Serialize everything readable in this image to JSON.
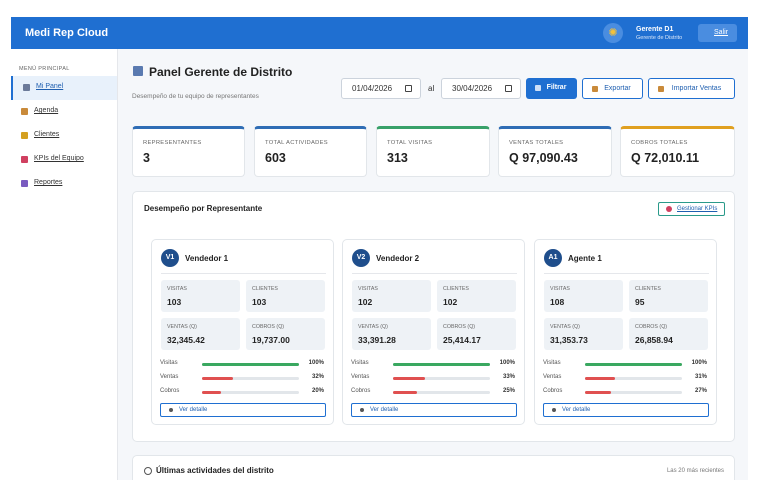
{
  "header": {
    "brand": "Medi Rep Cloud",
    "user_name": "Gerente D1",
    "user_role": "Gerente de Distrito",
    "logout": "Salir"
  },
  "sidebar": {
    "section_title": "MENÚ PRINCIPAL",
    "items": [
      "Mi Panel",
      "Agenda",
      "Clientes",
      "KPIs del Equipo",
      "Reportes"
    ]
  },
  "page": {
    "title": "Panel Gerente de Distrito",
    "subtitle": "Desempeño de tu equipo de representantes",
    "date_from": "01/04/2026",
    "date_sep": "al",
    "date_to": "30/04/2026",
    "buttons": [
      "Filtrar",
      "Exportar",
      "Importar Ventas"
    ]
  },
  "kpis": [
    {
      "label": "REPRESENTANTES",
      "value": "3"
    },
    {
      "label": "TOTAL ACTIVIDADES",
      "value": "603"
    },
    {
      "label": "TOTAL VISITAS",
      "value": "313"
    },
    {
      "label": "VENTAS TOTALES",
      "value": "Q 97,090.43"
    },
    {
      "label": "COBROS TOTALES",
      "value": "Q 72,010.11"
    }
  ],
  "performance": {
    "title": "Desempeño por Representante",
    "manage_button": "Gestionar KPIs",
    "reps": [
      {
        "initials": "V1",
        "name": "Vendedor 1",
        "stats": [
          {
            "label": "VISITAS",
            "value": "103"
          },
          {
            "label": "CLIENTES",
            "value": "103"
          },
          {
            "label": "VENTAS (Q)",
            "value": "32,345.42"
          },
          {
            "label": "COBROS (Q)",
            "value": "19,737.00"
          }
        ],
        "bars": [
          {
            "label": "Visitas",
            "value": 100,
            "value_label": "100%"
          },
          {
            "label": "Ventas",
            "value": 32,
            "value_label": "32%"
          },
          {
            "label": "Cobros",
            "value": 20,
            "value_label": "20%"
          }
        ],
        "detail": "Ver detalle"
      },
      {
        "initials": "V2",
        "name": "Vendedor 2",
        "stats": [
          {
            "label": "VISITAS",
            "value": "102"
          },
          {
            "label": "CLIENTES",
            "value": "102"
          },
          {
            "label": "VENTAS (Q)",
            "value": "33,391.28"
          },
          {
            "label": "COBROS (Q)",
            "value": "25,414.17"
          }
        ],
        "bars": [
          {
            "label": "Visitas",
            "value": 100,
            "value_label": "100%"
          },
          {
            "label": "Ventas",
            "value": 33,
            "value_label": "33%"
          },
          {
            "label": "Cobros",
            "value": 25,
            "value_label": "25%"
          }
        ],
        "detail": "Ver detalle"
      },
      {
        "initials": "A1",
        "name": "Agente 1",
        "stats": [
          {
            "label": "VISITAS",
            "value": "108"
          },
          {
            "label": "CLIENTES",
            "value": "95"
          },
          {
            "label": "VENTAS (Q)",
            "value": "31,353.73"
          },
          {
            "label": "COBROS (Q)",
            "value": "26,858.94"
          }
        ],
        "bars": [
          {
            "label": "Visitas",
            "value": 100,
            "value_label": "100%"
          },
          {
            "label": "Ventas",
            "value": 31,
            "value_label": "31%"
          },
          {
            "label": "Cobros",
            "value": 27,
            "value_label": "27%"
          }
        ],
        "detail": "Ver detalle"
      }
    ]
  },
  "recent": {
    "title": "Últimas actividades del distrito",
    "note": "Las 20 más recientes"
  }
}
